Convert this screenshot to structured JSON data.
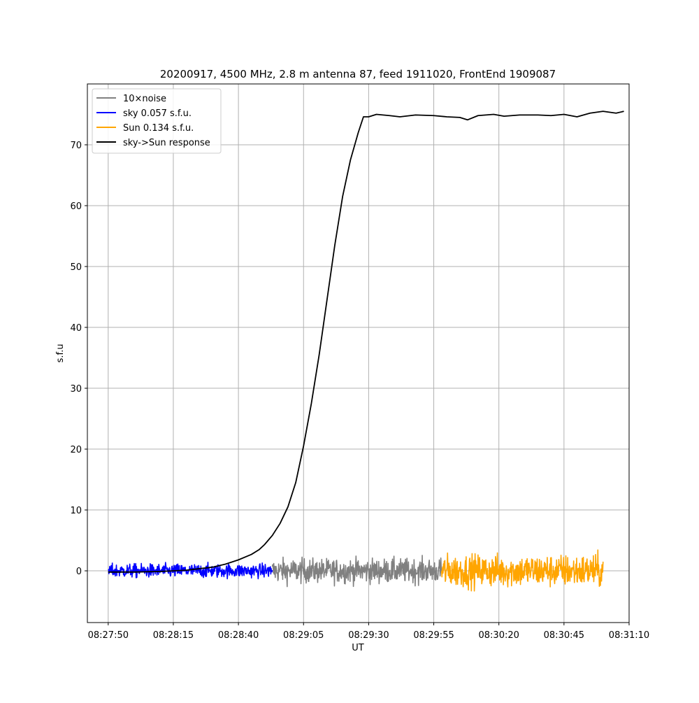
{
  "chart_data": {
    "type": "line",
    "title": "20200917, 4500 MHz, 2.8 m antenna 87, feed 1911020, FrontEnd 1909087",
    "xlabel": "UT",
    "ylabel": "s.f.u",
    "x_unit": "seconds of UT time",
    "xlim": [
      "08:27:42",
      "08:31:10"
    ],
    "ylim": [
      -8.5,
      80
    ],
    "x_ticks": [
      {
        "t": "08:27:50",
        "label": "08:27:50"
      },
      {
        "t": "08:28:15",
        "label": "08:28:15"
      },
      {
        "t": "08:28:40",
        "label": "08:28:40"
      },
      {
        "t": "08:29:05",
        "label": "08:29:05"
      },
      {
        "t": "08:29:30",
        "label": "08:29:30"
      },
      {
        "t": "08:29:55",
        "label": "08:29:55"
      },
      {
        "t": "08:30:20",
        "label": "08:30:20"
      },
      {
        "t": "08:30:45",
        "label": "08:30:45"
      },
      {
        "t": "08:31:10",
        "label": "08:31:10"
      }
    ],
    "y_ticks": [
      0,
      10,
      20,
      30,
      40,
      50,
      60,
      70
    ],
    "grid": true,
    "legend_position": "top-left",
    "series": [
      {
        "name": "10×noise",
        "color": "#808080",
        "kind": "noise",
        "x_range": [
          "08:28:53",
          "08:29:58"
        ],
        "amplitude": 1.0,
        "peak": 4.2,
        "trough": -4.5
      },
      {
        "name": "sky 0.057 s.f.u.",
        "color": "#0000ff",
        "kind": "noise",
        "x_range": [
          "08:27:50",
          "08:28:53"
        ],
        "amplitude": 0.57,
        "peak": 1.9,
        "trough": -1.7
      },
      {
        "name": "Sun 0.134 s.f.u.",
        "color": "#ffa500",
        "kind": "noise",
        "x_range": [
          "08:29:58",
          "08:31:00"
        ],
        "amplitude": 1.34,
        "peak": 4.2,
        "trough": -4.0
      },
      {
        "name": "sky->Sun response",
        "color": "#000000",
        "kind": "line",
        "points": [
          [
            "08:27:50",
            -0.2
          ],
          [
            "08:28:00",
            -0.2
          ],
          [
            "08:28:10",
            -0.1
          ],
          [
            "08:28:20",
            0.1
          ],
          [
            "08:28:30",
            0.6
          ],
          [
            "08:28:35",
            1.1
          ],
          [
            "08:28:40",
            1.8
          ],
          [
            "08:28:45",
            2.7
          ],
          [
            "08:28:48",
            3.5
          ],
          [
            "08:28:50",
            4.3
          ],
          [
            "08:28:53",
            5.8
          ],
          [
            "08:28:56",
            7.8
          ],
          [
            "08:28:59",
            10.5
          ],
          [
            "08:29:02",
            14.5
          ],
          [
            "08:29:05",
            20.5
          ],
          [
            "08:29:08",
            27.5
          ],
          [
            "08:29:11",
            35.5
          ],
          [
            "08:29:14",
            44.5
          ],
          [
            "08:29:17",
            53.5
          ],
          [
            "08:29:20",
            61.5
          ],
          [
            "08:29:23",
            67.5
          ],
          [
            "08:29:26",
            72.0
          ],
          [
            "08:29:28",
            74.6
          ],
          [
            "08:29:30",
            74.6
          ],
          [
            "08:29:33",
            75.0
          ],
          [
            "08:29:38",
            74.8
          ],
          [
            "08:29:42",
            74.6
          ],
          [
            "08:29:48",
            74.9
          ],
          [
            "08:29:55",
            74.8
          ],
          [
            "08:30:00",
            74.6
          ],
          [
            "08:30:05",
            74.5
          ],
          [
            "08:30:08",
            74.1
          ],
          [
            "08:30:12",
            74.8
          ],
          [
            "08:30:18",
            75.0
          ],
          [
            "08:30:22",
            74.7
          ],
          [
            "08:30:28",
            74.9
          ],
          [
            "08:30:35",
            74.9
          ],
          [
            "08:30:40",
            74.8
          ],
          [
            "08:30:45",
            75.0
          ],
          [
            "08:30:50",
            74.6
          ],
          [
            "08:30:55",
            75.2
          ],
          [
            "08:31:00",
            75.5
          ],
          [
            "08:31:05",
            75.2
          ],
          [
            "08:31:08",
            75.5
          ]
        ]
      }
    ]
  }
}
